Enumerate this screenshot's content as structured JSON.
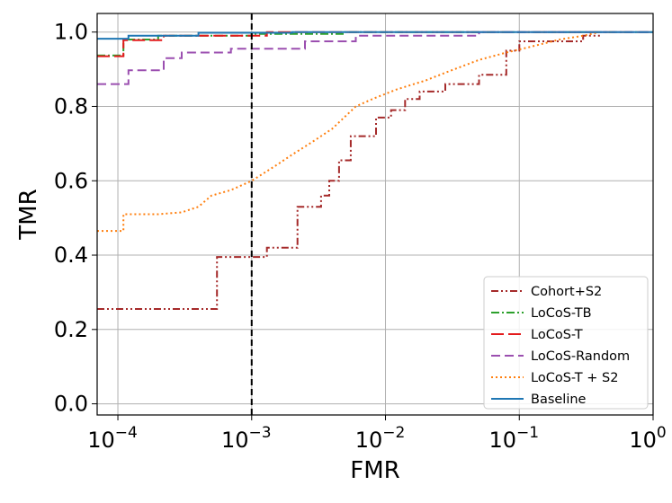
{
  "chart_data": {
    "type": "line",
    "xscale": "log",
    "xlabel": "FMR",
    "ylabel": "TMR",
    "xlim": [
      7e-05,
      1.0
    ],
    "ylim": [
      -0.03,
      1.05
    ],
    "grid": true,
    "legend_position": "lower right",
    "x_ticks": [
      {
        "value": 0.0001,
        "base": "10",
        "exp": "−4"
      },
      {
        "value": 0.001,
        "base": "10",
        "exp": "−3"
      },
      {
        "value": 0.01,
        "base": "10",
        "exp": "−2"
      },
      {
        "value": 0.1,
        "base": "10",
        "exp": "−1"
      },
      {
        "value": 1.0,
        "base": "10",
        "exp": "0"
      }
    ],
    "y_ticks": [
      {
        "value": 0.0,
        "label": "0.0"
      },
      {
        "value": 0.2,
        "label": "0.2"
      },
      {
        "value": 0.4,
        "label": "0.4"
      },
      {
        "value": 0.6,
        "label": "0.6"
      },
      {
        "value": 0.8,
        "label": "0.8"
      },
      {
        "value": 1.0,
        "label": "1.0"
      }
    ],
    "vline": {
      "x": 0.001,
      "color": "#000000",
      "style": "dashed"
    },
    "series": [
      {
        "name": "Cohort+S2",
        "color": "#a52a2a",
        "dash": "8,3,2,3,2,3",
        "points": [
          [
            7e-05,
            0.255
          ],
          [
            0.00055,
            0.255
          ],
          [
            0.00055,
            0.395
          ],
          [
            0.0013,
            0.395
          ],
          [
            0.0013,
            0.42
          ],
          [
            0.0022,
            0.42
          ],
          [
            0.0022,
            0.53
          ],
          [
            0.0033,
            0.53
          ],
          [
            0.0033,
            0.56
          ],
          [
            0.0038,
            0.56
          ],
          [
            0.0038,
            0.6
          ],
          [
            0.0045,
            0.6
          ],
          [
            0.0045,
            0.655
          ],
          [
            0.0055,
            0.655
          ],
          [
            0.0055,
            0.72
          ],
          [
            0.0085,
            0.72
          ],
          [
            0.0085,
            0.77
          ],
          [
            0.011,
            0.77
          ],
          [
            0.011,
            0.79
          ],
          [
            0.014,
            0.79
          ],
          [
            0.014,
            0.82
          ],
          [
            0.018,
            0.82
          ],
          [
            0.018,
            0.84
          ],
          [
            0.028,
            0.84
          ],
          [
            0.028,
            0.86
          ],
          [
            0.05,
            0.86
          ],
          [
            0.05,
            0.885
          ],
          [
            0.08,
            0.885
          ],
          [
            0.08,
            0.95
          ],
          [
            0.1,
            0.95
          ],
          [
            0.1,
            0.975
          ],
          [
            0.3,
            0.975
          ],
          [
            0.3,
            0.99
          ],
          [
            0.4,
            0.99
          ]
        ]
      },
      {
        "name": "LoCoS-TB",
        "color": "#2ca02c",
        "dash": "9,3,2,3",
        "points": [
          [
            7e-05,
            0.937
          ],
          [
            0.00011,
            0.937
          ],
          [
            0.00011,
            0.98
          ],
          [
            0.0002,
            0.98
          ],
          [
            0.0002,
            0.99
          ],
          [
            0.001,
            0.99
          ],
          [
            0.001,
            0.995
          ],
          [
            0.005,
            0.995
          ],
          [
            0.005,
            1.0
          ],
          [
            1.0,
            1.0
          ]
        ]
      },
      {
        "name": "LoCoS-T",
        "color": "#e31a1c",
        "dash": "14,5",
        "points": [
          [
            7e-05,
            0.935
          ],
          [
            0.00011,
            0.935
          ],
          [
            0.00011,
            0.978
          ],
          [
            0.00022,
            0.978
          ],
          [
            0.00022,
            0.99
          ],
          [
            0.0013,
            0.99
          ],
          [
            0.0013,
            1.0
          ],
          [
            1.0,
            1.0
          ]
        ]
      },
      {
        "name": "LoCoS-Random",
        "color": "#9b4fb0",
        "dash": "10,5",
        "points": [
          [
            7e-05,
            0.86
          ],
          [
            0.00012,
            0.86
          ],
          [
            0.00012,
            0.897
          ],
          [
            0.00022,
            0.897
          ],
          [
            0.00022,
            0.93
          ],
          [
            0.0003,
            0.93
          ],
          [
            0.0003,
            0.945
          ],
          [
            0.0007,
            0.945
          ],
          [
            0.0007,
            0.955
          ],
          [
            0.0025,
            0.955
          ],
          [
            0.0025,
            0.975
          ],
          [
            0.006,
            0.975
          ],
          [
            0.006,
            0.99
          ],
          [
            0.05,
            0.99
          ],
          [
            0.05,
            1.0
          ],
          [
            1.0,
            1.0
          ]
        ]
      },
      {
        "name": "LoCoS-T + S2",
        "color": "#ff7f0e",
        "dash": "2,3",
        "points": [
          [
            7e-05,
            0.465
          ],
          [
            0.00011,
            0.465
          ],
          [
            0.00011,
            0.51
          ],
          [
            0.0002,
            0.51
          ],
          [
            0.0003,
            0.515
          ],
          [
            0.0004,
            0.53
          ],
          [
            0.0005,
            0.56
          ],
          [
            0.0007,
            0.575
          ],
          [
            0.001,
            0.6
          ],
          [
            0.0015,
            0.64
          ],
          [
            0.002,
            0.67
          ],
          [
            0.003,
            0.71
          ],
          [
            0.004,
            0.74
          ],
          [
            0.006,
            0.8
          ],
          [
            0.008,
            0.82
          ],
          [
            0.012,
            0.845
          ],
          [
            0.02,
            0.87
          ],
          [
            0.03,
            0.895
          ],
          [
            0.05,
            0.925
          ],
          [
            0.08,
            0.945
          ],
          [
            0.12,
            0.96
          ],
          [
            0.2,
            0.98
          ],
          [
            0.3,
            0.99
          ],
          [
            0.4,
            1.0
          ]
        ]
      },
      {
        "name": "Baseline",
        "color": "#1f77b4",
        "dash": "",
        "points": [
          [
            7e-05,
            0.982
          ],
          [
            0.00012,
            0.982
          ],
          [
            0.00012,
            0.99
          ],
          [
            0.0004,
            0.99
          ],
          [
            0.0004,
            0.998
          ],
          [
            0.002,
            0.998
          ],
          [
            0.002,
            1.0
          ],
          [
            1.0,
            1.0
          ]
        ]
      }
    ],
    "legend_order": [
      "Cohort+S2",
      "LoCoS-TB",
      "LoCoS-T",
      "LoCoS-Random",
      "LoCoS-T + S2",
      "Baseline"
    ]
  }
}
